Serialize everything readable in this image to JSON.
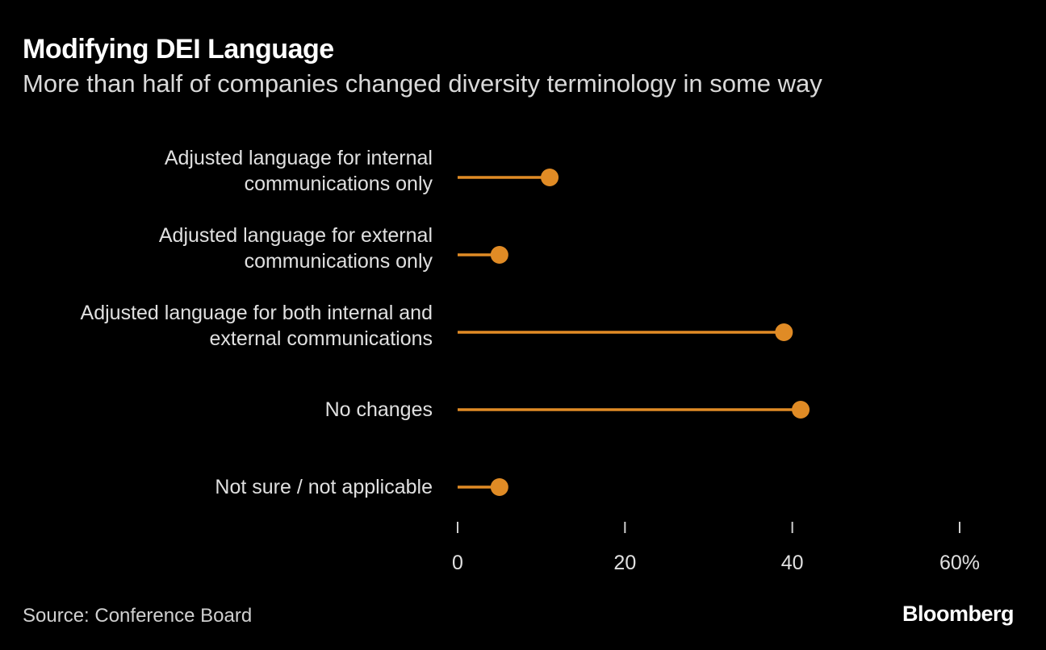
{
  "title": "Modifying DEI Language",
  "subtitle": "More than half of companies changed diversity terminology in some way",
  "source": "Source: Conference Board",
  "logo": "Bloomberg",
  "chart_data": {
    "type": "lollipop",
    "orientation": "horizontal",
    "title": "Modifying DEI Language",
    "subtitle": "More than half of companies changed diversity terminology in some way",
    "categories": [
      [
        "Adjusted language for internal",
        "communications only"
      ],
      [
        "Adjusted language for external",
        "communications only"
      ],
      [
        "Adjusted language for both internal and",
        "external communications"
      ],
      [
        "No changes"
      ],
      [
        "Not sure / not applicable"
      ]
    ],
    "values": [
      11,
      5,
      39,
      41,
      5
    ],
    "xlim": [
      0,
      60
    ],
    "xticks": [
      0,
      20,
      40,
      60
    ],
    "xtick_labels": [
      "0",
      "20",
      "40",
      "60%"
    ],
    "grid": false,
    "color": "#e08b25",
    "background": "#000000"
  }
}
